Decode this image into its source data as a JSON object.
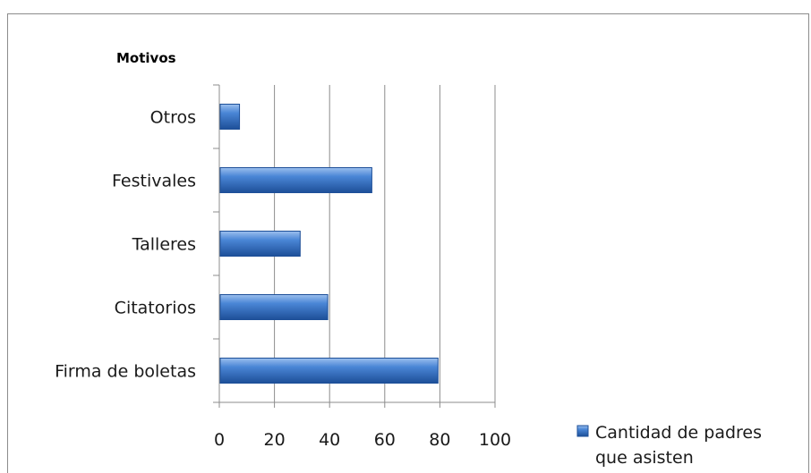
{
  "chart_data": {
    "type": "bar",
    "orientation": "horizontal",
    "title": "",
    "axis_title": "Motivos",
    "xlim": [
      0,
      100
    ],
    "x_ticks": [
      "0",
      "20",
      "40",
      "60",
      "80",
      "100"
    ],
    "grid": true,
    "legend_position": "bottom-right",
    "categories": [
      "Firma de boletas",
      "Citatorios",
      "Talleres",
      "Festivales",
      "Otros"
    ],
    "series": [
      {
        "name_lines": [
          "Cantidad de padres",
          "que asisten"
        ],
        "values": [
          79,
          39,
          29,
          55,
          7
        ],
        "color": "#3a74c8"
      }
    ]
  }
}
